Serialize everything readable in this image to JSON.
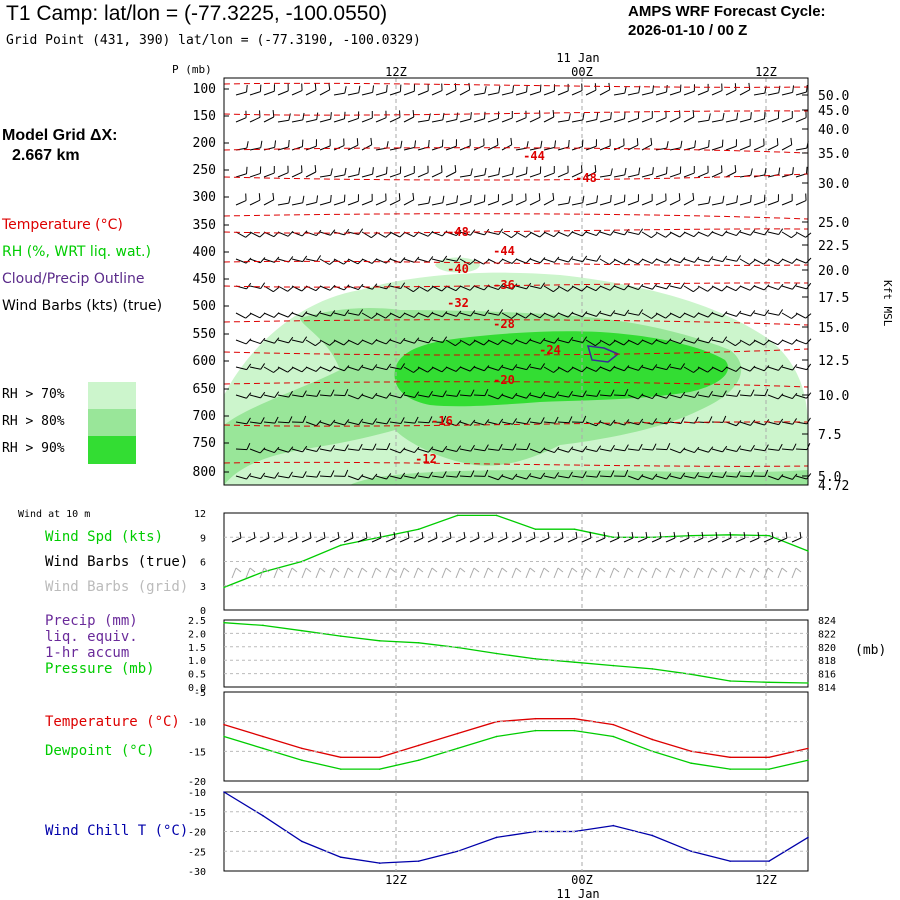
{
  "header": {
    "title": "T1 Camp:  lat/lon = (-77.3225, -100.0550)",
    "grid_point": "Grid Point (431, 390) lat/lon = (-77.3190, -100.0329)",
    "cycle_line1": "AMPS WRF Forecast Cycle:",
    "cycle_line2": "2026-01-10 / 00  Z"
  },
  "model_grid": {
    "label": "Model Grid ΔX:",
    "value": "2.667 km"
  },
  "legend": {
    "temperature": "Temperature (°C)",
    "rh": "RH (%, WRT liq. wat.)",
    "cloud": "Cloud/Precip Outline",
    "wind": "Wind Barbs (kts) (true)",
    "rh70": "RH > 70%",
    "rh80": "RH > 80%",
    "rh90": "RH > 90%"
  },
  "colors": {
    "rh70": "#ccf5cc",
    "rh80": "#99e699",
    "rh90": "#33dd33",
    "temperature": "#dd0000",
    "green": "#00cc00",
    "blue": "#0000aa",
    "purple": "#5a2a8a"
  },
  "time_axis": {
    "ticks": [
      "12Z",
      "00Z",
      "12Z"
    ],
    "date": "11 Jan"
  },
  "upper": {
    "p_label": "P (mb)",
    "p_ticks": [
      "100",
      "150",
      "200",
      "250",
      "300",
      "350",
      "400",
      "450",
      "500",
      "550",
      "600",
      "650",
      "700",
      "750",
      "800"
    ],
    "kft_ticks": [
      "50.0",
      "45.0",
      "40.0",
      "35.0",
      "30.0",
      "25.0",
      "22.5",
      "20.0",
      "17.5",
      "15.0",
      "12.5",
      "10.0",
      "7.5",
      "5.0",
      "4.72"
    ],
    "kft_label": "Kft MSL",
    "temp_labels": [
      "-44",
      "-48",
      "-48",
      "-44",
      "-40",
      "-36",
      "-32",
      "-28",
      "-24",
      "-20",
      "-16",
      "-12"
    ]
  },
  "panel1": {
    "title": "Wind at 10 m",
    "speed_label": "Wind Spd (kts)",
    "barbs_true": "Wind Barbs (true)",
    "barbs_grid": "Wind Barbs (grid)",
    "y_ticks": [
      "12",
      "9",
      "6",
      "3",
      "0"
    ]
  },
  "panel2": {
    "precip_label": "Precip (mm)",
    "liq": "liq. equiv.",
    "accum": "1-hr accum",
    "pressure_label": "Pressure (mb)",
    "left_ticks": [
      "2.5",
      "2.0",
      "1.5",
      "1.0",
      "0.5",
      "0.0"
    ],
    "right_ticks": [
      "824",
      "822",
      "820",
      "818",
      "816",
      "814"
    ],
    "mb_unit": "(mb)"
  },
  "panel3": {
    "temp_label": "Temperature (°C)",
    "dew_label": "Dewpoint (°C)",
    "y_ticks": [
      "-5",
      "-10",
      "-15",
      "-20"
    ]
  },
  "panel4": {
    "label": "Wind Chill T (°C)",
    "y_ticks": [
      "-10",
      "-15",
      "-20",
      "-25",
      "-30"
    ]
  },
  "chart_data": [
    {
      "type": "line",
      "title": "Wind at 10 m",
      "ylabel": "Wind Spd (kts)",
      "ylim": [
        0,
        12
      ],
      "x": [
        0,
        3,
        6,
        9,
        12,
        15,
        18,
        21,
        24,
        27,
        30,
        33,
        36,
        39,
        42,
        45
      ],
      "series": [
        {
          "name": "Wind Spd (kts)",
          "values": [
            2.8,
            4.7,
            6.0,
            8.0,
            9.0,
            10.0,
            11.7,
            11.7,
            10.0,
            10.0,
            9.0,
            9.0,
            9.2,
            9.3,
            9.2,
            7.3
          ]
        }
      ]
    },
    {
      "type": "line",
      "title": "Pressure (mb)",
      "ylim": [
        814,
        824
      ],
      "x": [
        0,
        3,
        6,
        9,
        12,
        15,
        18,
        21,
        24,
        27,
        30,
        33,
        36,
        39,
        42,
        45
      ],
      "series": [
        {
          "name": "Pressure (mb)",
          "values": [
            823.6,
            823.2,
            822.4,
            821.6,
            820.9,
            820.6,
            819.9,
            819.0,
            818.2,
            817.7,
            817.2,
            816.7,
            815.9,
            814.9,
            814.7,
            814.6
          ]
        }
      ]
    },
    {
      "type": "line",
      "title": "Temperature / Dewpoint",
      "ylabel": "°C",
      "ylim": [
        -20,
        -5
      ],
      "x": [
        0,
        3,
        6,
        9,
        12,
        15,
        18,
        21,
        24,
        27,
        30,
        33,
        36,
        39,
        42,
        45
      ],
      "series": [
        {
          "name": "Temperature (°C)",
          "values": [
            -10.5,
            -12.5,
            -14.5,
            -16.0,
            -16.0,
            -14.0,
            -12.0,
            -10.0,
            -9.5,
            -9.5,
            -10.5,
            -13.0,
            -15.0,
            -16.0,
            -16.0,
            -14.5
          ]
        },
        {
          "name": "Dewpoint (°C)",
          "values": [
            -12.5,
            -14.5,
            -16.5,
            -18.0,
            -18.0,
            -16.5,
            -14.5,
            -12.5,
            -11.5,
            -11.5,
            -12.5,
            -15.0,
            -17.0,
            -18.0,
            -18.0,
            -16.5
          ]
        }
      ]
    },
    {
      "type": "line",
      "title": "Wind Chill T",
      "ylabel": "Wind Chill T (°C)",
      "ylim": [
        -30,
        -10
      ],
      "x": [
        0,
        3,
        6,
        9,
        12,
        15,
        18,
        21,
        24,
        27,
        30,
        33,
        36,
        39,
        42,
        45
      ],
      "series": [
        {
          "name": "Wind Chill T (°C)",
          "values": [
            -10.0,
            -16.0,
            -22.5,
            -26.5,
            -28.0,
            -27.5,
            -25.0,
            -21.5,
            -20.0,
            -20.0,
            -18.5,
            -21.0,
            -25.0,
            -27.5,
            -27.5,
            -21.5
          ]
        }
      ]
    }
  ]
}
